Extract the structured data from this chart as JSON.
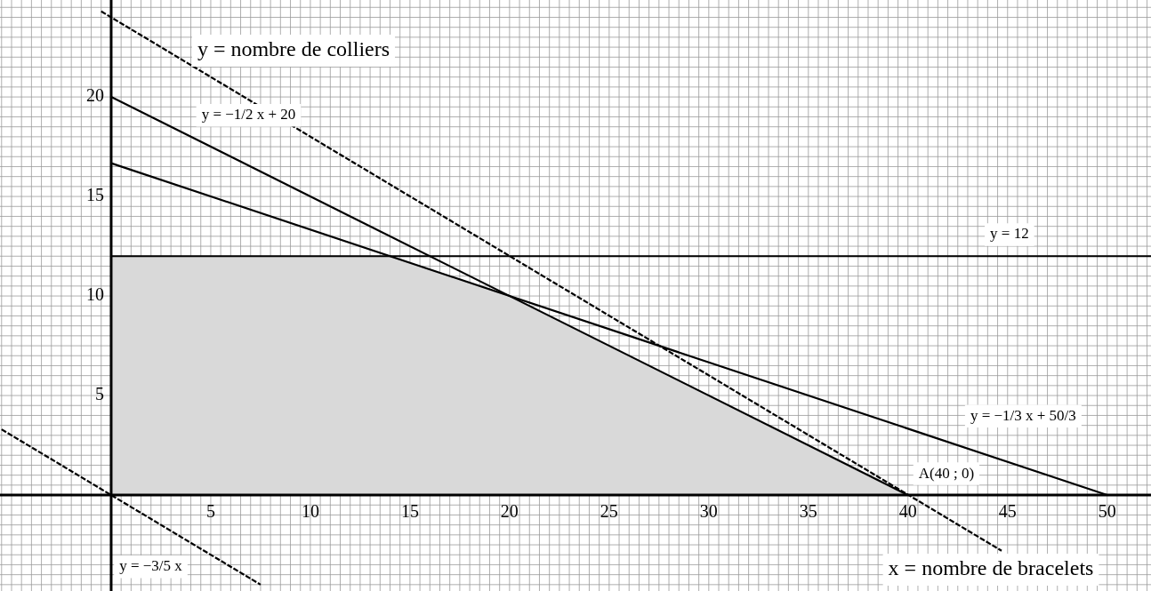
{
  "chart_data": {
    "type": "line",
    "xlabel": "x = nombre de bracelets",
    "ylabel": "y = nombre de colliers",
    "xlim": [
      -5.58,
      52.2
    ],
    "ylim": [
      -4.82,
      24.87
    ],
    "xticks": [
      5,
      10,
      15,
      20,
      25,
      30,
      35,
      40,
      45,
      50
    ],
    "yticks": [
      5,
      10,
      15,
      20
    ],
    "grid": true,
    "legend": false,
    "marker": "none",
    "series": [
      {
        "type": "area",
        "color": "#d9d9d9",
        "x": [
          0,
          14,
          20,
          40
        ],
        "values": [
          12,
          12,
          10,
          0
        ]
      },
      {
        "color": "#000000",
        "x": [
          0,
          40
        ],
        "values": [
          20,
          0
        ]
      },
      {
        "color": "#000000",
        "x": [
          0,
          50
        ],
        "values": [
          16.67,
          0
        ]
      },
      {
        "color": "#000000",
        "x": [
          0,
          52.2
        ],
        "values": [
          12,
          12
        ]
      },
      {
        "color": "#000000",
        "line_style": "dashed",
        "x": [
          -5.5,
          7.5
        ],
        "values": [
          3.3,
          -4.5
        ]
      },
      {
        "color": "#000000",
        "line_style": "dashed",
        "x": [
          -0.5,
          44.7
        ],
        "values": [
          24.3,
          -2.8
        ]
      }
    ],
    "annotations": [
      "y = −1/2 x + 20",
      "y = 12",
      "y = −1/3 x + 50/3",
      {
        "text": "A(40 ; 0)",
        "x": 40,
        "y": 0
      },
      "y = −3/5 x"
    ]
  }
}
